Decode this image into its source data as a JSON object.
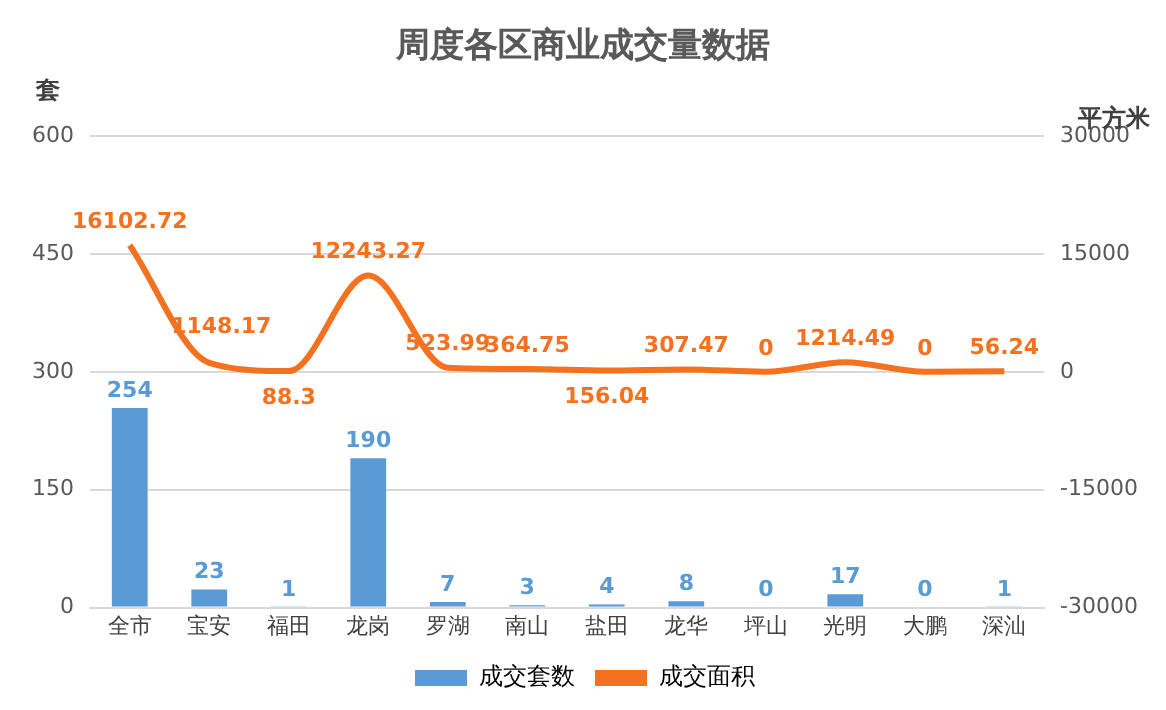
{
  "chart_data": {
    "type": "bar",
    "title": "周度各区商业成交量数据",
    "ylabel": "套",
    "y2label": "平方米",
    "categories": [
      "全市",
      "宝安",
      "福田",
      "龙岗",
      "罗湖",
      "南山",
      "盐田",
      "龙华",
      "坪山",
      "光明",
      "大鹏",
      "深汕"
    ],
    "series": [
      {
        "name": "成交套数",
        "color": "#5b9bd5",
        "values": [
          254,
          23,
          1,
          190,
          7,
          3,
          4,
          8,
          0,
          17,
          0,
          1
        ]
      },
      {
        "name": "成交面积",
        "type": "line",
        "axis": "y2",
        "color": "#f4711f",
        "values": [
          16102.72,
          1148.17,
          88.3,
          12243.27,
          523.99,
          364.75,
          156.04,
          307.47,
          0,
          1214.49,
          0,
          56.24
        ]
      }
    ],
    "ylim": [
      0,
      600
    ],
    "yticks": [
      0,
      150,
      300,
      450,
      600
    ],
    "y2lim": [
      -30000,
      30000
    ],
    "y2ticks": [
      -30000,
      -15000,
      0,
      15000,
      30000
    ],
    "grid": "y",
    "legend": "bottom",
    "marker": "none",
    "data_labels": true
  }
}
